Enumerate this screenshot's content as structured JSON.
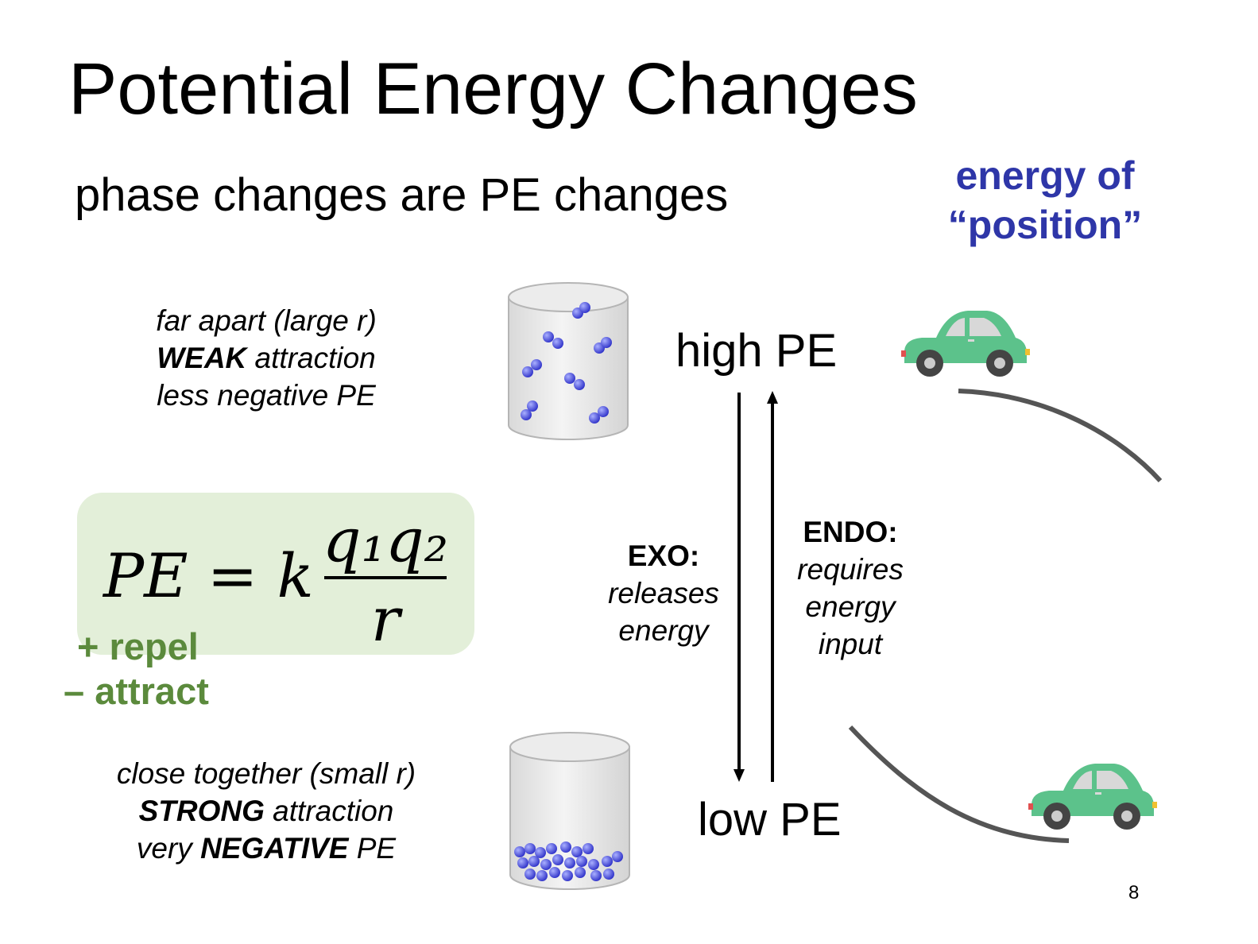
{
  "slide": {
    "title": "Potential Energy Changes",
    "subtitle": "phase changes are PE changes",
    "note_line1": "energy of",
    "note_line2": "“position”",
    "page_number": "8"
  },
  "far_apart": {
    "line1": "far apart (large r)",
    "line2_bold": "WEAK",
    "line2_rest": " attraction",
    "line3": "less negative PE"
  },
  "close_together": {
    "line1": "close together (small r)",
    "line2_bold": "STRONG",
    "line2_rest": " attraction",
    "line3_pre": "very ",
    "line3_bold": "NEGATIVE",
    "line3_post": " PE"
  },
  "formula": {
    "lhs": "PE = k",
    "numerator": "q₁q₂",
    "denominator": "r",
    "repel": "+ repel",
    "attract": "– attract"
  },
  "energy_levels": {
    "high": "high PE",
    "low": "low PE"
  },
  "exo": {
    "label": "EXO:",
    "line1": "releases",
    "line2": "energy"
  },
  "endo": {
    "label": "ENDO:",
    "line1": "requires",
    "line2": "energy",
    "line3": "input"
  },
  "icons": {
    "gas_container": "beaker-gas-icon",
    "liquid_container": "beaker-liquid-icon",
    "car": "car-icon"
  },
  "colors": {
    "accent_blue": "#2e36a8",
    "formula_bg": "#e3efd9",
    "sign_green": "#5b8a3c",
    "car_green": "#5cc28b",
    "molecule_blue": "#3c3fd6"
  }
}
